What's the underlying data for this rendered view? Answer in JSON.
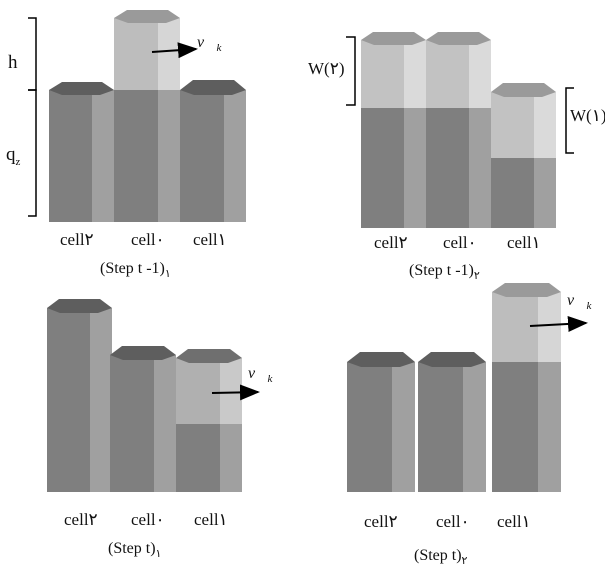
{
  "panels": [
    {
      "id": "p1",
      "caption": "(Step t -1)",
      "caption_sub": "١",
      "cells": [
        "cell٢",
        "cell٠",
        "cell١"
      ],
      "labels": {
        "h": "h",
        "qz": "q",
        "qz_sub": "z"
      },
      "velocity": {
        "symbol": "ν⃗",
        "sub": "k"
      }
    },
    {
      "id": "p2",
      "caption": "(Step t -1)",
      "caption_sub": "٢",
      "cells": [
        "cell٢",
        "cell٠",
        "cell١"
      ],
      "labels": {
        "w2": "W(٢)",
        "w1": "W(١)"
      }
    },
    {
      "id": "p3",
      "caption": "(Step t)",
      "caption_sub": "١",
      "cells": [
        "cell٢",
        "cell٠",
        "cell١"
      ],
      "velocity": {
        "symbol": "ν⃗",
        "sub": "k"
      }
    },
    {
      "id": "p4",
      "caption": "(Step t)",
      "caption_sub": "٢",
      "cells": [
        "cell٢",
        "cell٠",
        "cell١"
      ],
      "velocity": {
        "symbol": "ν⃗",
        "sub": "k"
      }
    }
  ],
  "colors": {
    "column_dark": "#7f7f7f",
    "column_mid": "#8e8e8e",
    "column_side": "#a3a3a3",
    "column_top": "#5e5e5e",
    "light_face": "#bdbdbd",
    "light_side": "#d8d8d8",
    "light_top": "#9a9a9a"
  }
}
